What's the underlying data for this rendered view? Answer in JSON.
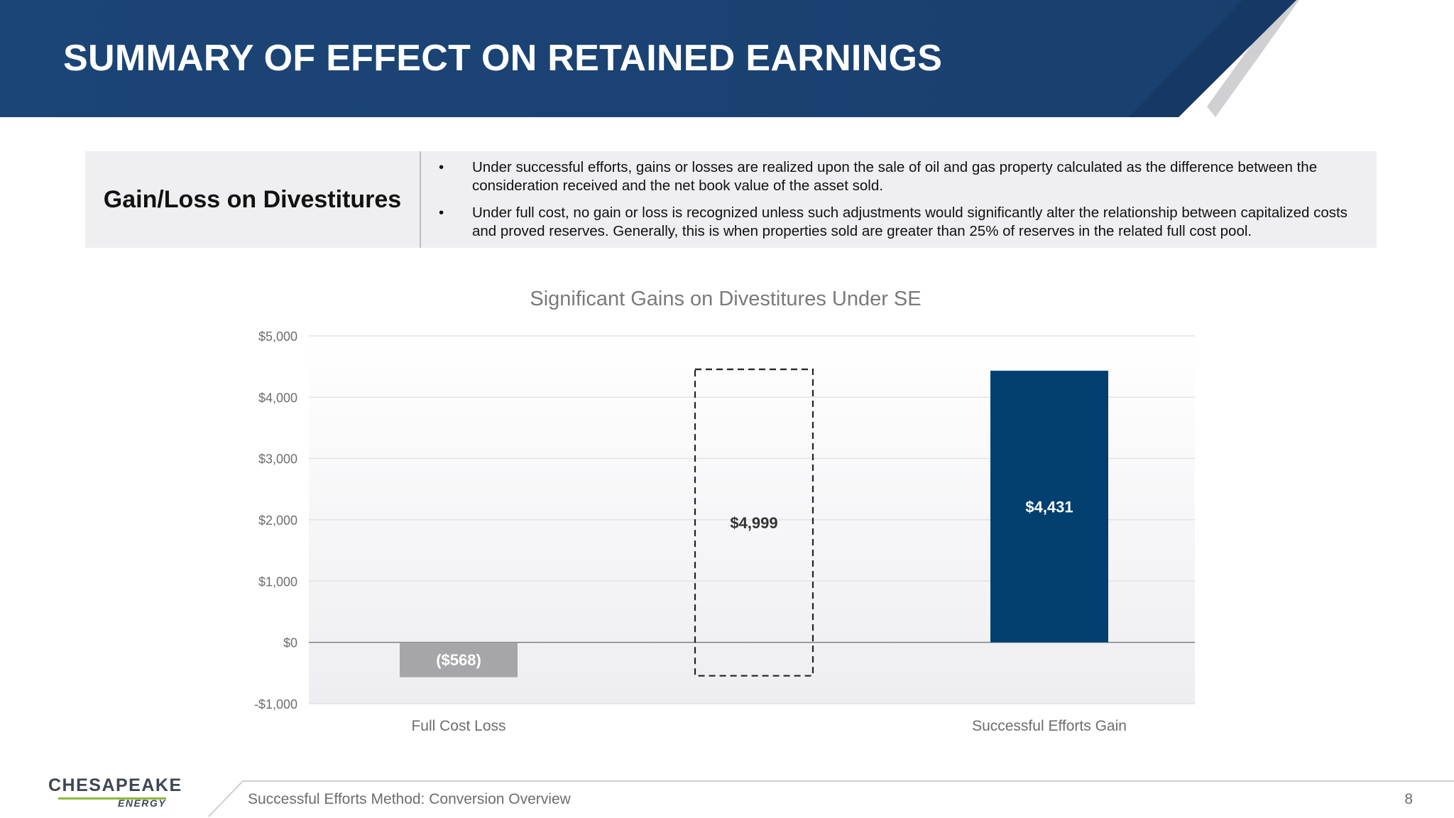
{
  "header": {
    "title": "SUMMARY OF EFFECT ON RETAINED EARNINGS"
  },
  "info": {
    "label": "Gain/Loss on Divestitures",
    "bullets": [
      "Under successful efforts, gains or losses are realized upon the sale of oil and gas property calculated as the difference between the consideration received and the net book value of the asset sold.",
      "Under full cost, no gain or loss is recognized unless such adjustments would significantly alter the relationship between capitalized costs and proved reserves. Generally, this is when properties sold are greater than 25% of reserves in the related full cost pool."
    ],
    "bullet_char": "•"
  },
  "chart_data": {
    "type": "bar",
    "title": "Significant Gains on Divestitures Under SE",
    "categories": [
      "Full Cost Loss",
      "",
      "Successful Efforts Gain"
    ],
    "values": [
      -568,
      4999,
      4431
    ],
    "value_labels": [
      "($568)",
      "$4,999",
      "$4,431"
    ],
    "styles": [
      "solid",
      "dashed-outline",
      "solid"
    ],
    "colors": [
      "#a6a6a8",
      "none",
      "#003f6f"
    ],
    "dashed_range": [
      -568,
      4431
    ],
    "ylim": [
      -1000,
      5000
    ],
    "yticks": [
      -1000,
      0,
      1000,
      2000,
      3000,
      4000,
      5000
    ],
    "ytick_labels": [
      "-$1,000",
      "$0",
      "$1,000",
      "$2,000",
      "$3,000",
      "$4,000",
      "$5,000"
    ],
    "xlabel": "",
    "ylabel": "",
    "grid": true
  },
  "footer": {
    "logo_top": "CHESAPEAKE",
    "logo_bottom": "ENERGY",
    "text": "Successful Efforts Method: Conversion Overview",
    "page": "8"
  },
  "colors": {
    "header": "#1b4776",
    "accent": "#8db83a",
    "bar_dark": "#003f6f",
    "bar_gray": "#a6a6a8"
  }
}
